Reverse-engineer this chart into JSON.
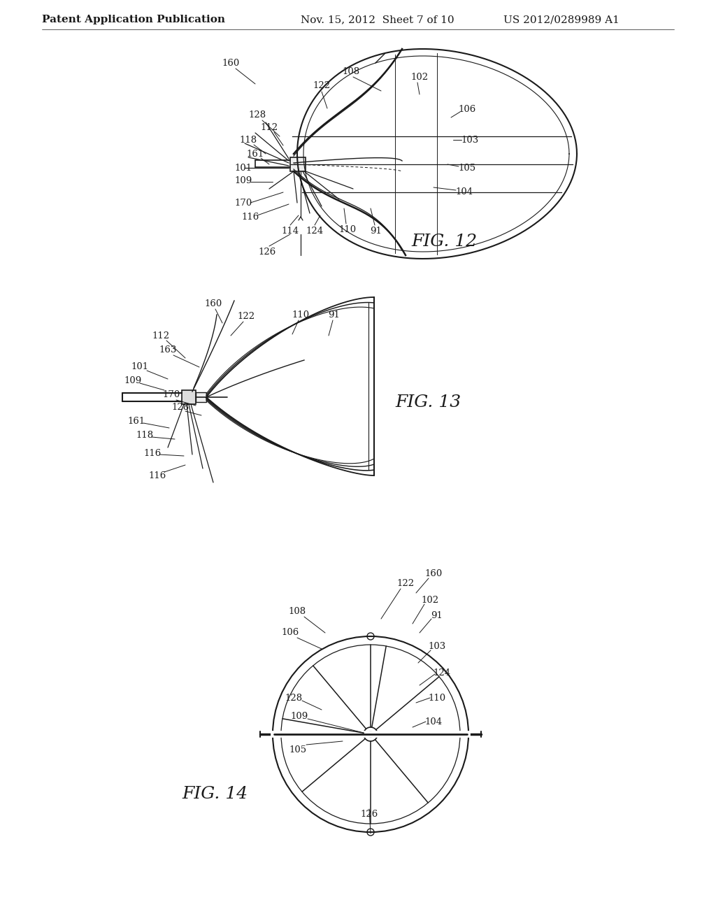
{
  "background_color": "#ffffff",
  "header_left": "Patent Application Publication",
  "header_mid": "Nov. 15, 2012  Sheet 7 of 10",
  "header_right": "US 2012/0289989 A1",
  "header_fontsize": 11,
  "line_color": "#1a1a1a",
  "label_fontsize": 9.5,
  "fig_label_fontsize": 18,
  "fig12_label": "FIG. 12",
  "fig13_label": "FIG. 13",
  "fig14_label": "FIG. 14"
}
